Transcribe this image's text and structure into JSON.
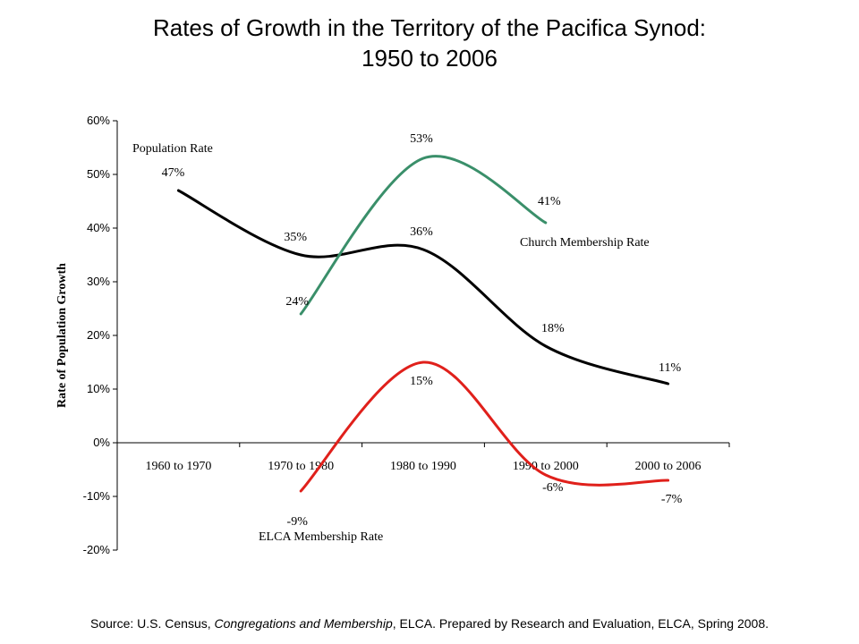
{
  "title": {
    "line1": "Rates of Growth in the Territory of the Pacifica Synod:",
    "line2": "1950 to 2006"
  },
  "source": {
    "prefix": "Source:  U.S. Census, ",
    "italic1": "Congregations and Membership",
    "middle": ", ELCA.  Prepared by Research and Evaluation, ELCA, Spring 2008."
  },
  "chart_data": {
    "type": "line",
    "categories": [
      "1960 to 1970",
      "1970 to 1980",
      "1980 to 1990",
      "1990 to 2000",
      "2000 to 2006"
    ],
    "ylabel": "Rate of Population Growth",
    "ylim": [
      -20,
      60
    ],
    "yticks": [
      60,
      50,
      40,
      30,
      20,
      10,
      0,
      -10,
      -20
    ],
    "ytick_labels": [
      "60%",
      "50%",
      "40%",
      "30%",
      "20%",
      "10%",
      "0%",
      "-10%",
      "-20%"
    ],
    "grid": false,
    "series": [
      {
        "name": "Population Rate",
        "color": "#000000",
        "values": [
          47,
          35,
          36,
          18,
          11
        ],
        "labels": [
          "47%",
          "35%",
          "36%",
          "18%",
          "11%"
        ]
      },
      {
        "name": "Church Membership Rate",
        "color": "#3a8f6a",
        "values": [
          null,
          24,
          53,
          41,
          null
        ],
        "labels": [
          null,
          "24%",
          "53%",
          "41%",
          null
        ]
      },
      {
        "name": "ELCA Membership Rate",
        "color": "#e0201b",
        "values": [
          null,
          -9,
          15,
          -6,
          -7
        ],
        "labels": [
          null,
          "-9%",
          "15%",
          "-6%",
          "-7%"
        ]
      }
    ]
  }
}
